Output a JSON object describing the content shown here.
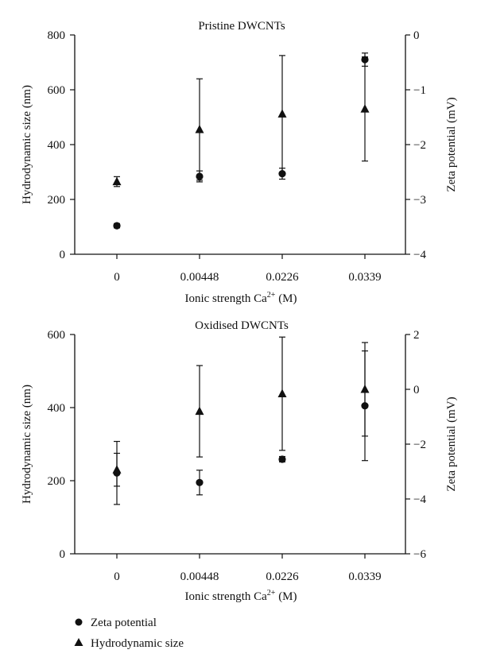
{
  "chart_data": [
    {
      "type": "scatter",
      "title": "Pristine DWCNTs",
      "xlabel": "Ionic strength Ca",
      "xlabel_sup": "2+",
      "xlabel_unit": " (M)",
      "categories": [
        "0",
        "0.00448",
        "0.0226",
        "0.0339"
      ],
      "y_left": {
        "label": "Hydrodynamic size (nm)",
        "range": [
          0,
          800
        ],
        "ticks": [
          "0",
          "200",
          "400",
          "600",
          "800"
        ]
      },
      "y_right": {
        "label": "Zeta potential (mV)",
        "range": [
          -4,
          0
        ],
        "ticks": [
          "0",
          "−1",
          "−2",
          "−3",
          "−4"
        ]
      },
      "series": [
        {
          "name": "Zeta potential",
          "marker": "circle",
          "axis": "right",
          "values": [
            -3.48,
            -2.58,
            -2.53,
            -0.45
          ],
          "errors": [
            0.04,
            0.1,
            0.1,
            0.12
          ]
        },
        {
          "name": "Hydrodynamic size",
          "marker": "triangle",
          "axis": "left",
          "values": [
            265,
            455,
            512,
            530
          ],
          "errors": [
            18,
            185,
            213,
            190
          ]
        }
      ]
    },
    {
      "type": "scatter",
      "title": "Oxidised DWCNTs",
      "xlabel": "Ionic strength Ca",
      "xlabel_sup": "2+",
      "xlabel_unit": " (M)",
      "categories": [
        "0",
        "0.00448",
        "0.0226",
        "0.0339"
      ],
      "y_left": {
        "label": "Hydrodynamic size (nm)",
        "range": [
          0,
          600
        ],
        "ticks": [
          "0",
          "200",
          "400",
          "600"
        ]
      },
      "y_right": {
        "label": "Zeta potential (mV)",
        "range": [
          -6,
          2
        ],
        "ticks": [
          "2",
          "0",
          "−2",
          "−4",
          "−6"
        ]
      },
      "series": [
        {
          "name": "Zeta potential",
          "marker": "circle",
          "axis": "right",
          "values": [
            -3.05,
            -3.4,
            -2.55,
            -0.6
          ],
          "errors": [
            1.15,
            0.45,
            0.1,
            2.0
          ]
        },
        {
          "name": "Hydrodynamic size",
          "marker": "triangle",
          "axis": "left",
          "values": [
            230,
            390,
            438,
            450
          ],
          "errors": [
            45,
            125,
            155,
            128
          ]
        }
      ]
    }
  ],
  "legend": [
    {
      "marker": "circle",
      "label": "Zeta potential"
    },
    {
      "marker": "triangle",
      "label": "Hydrodynamic size"
    }
  ]
}
